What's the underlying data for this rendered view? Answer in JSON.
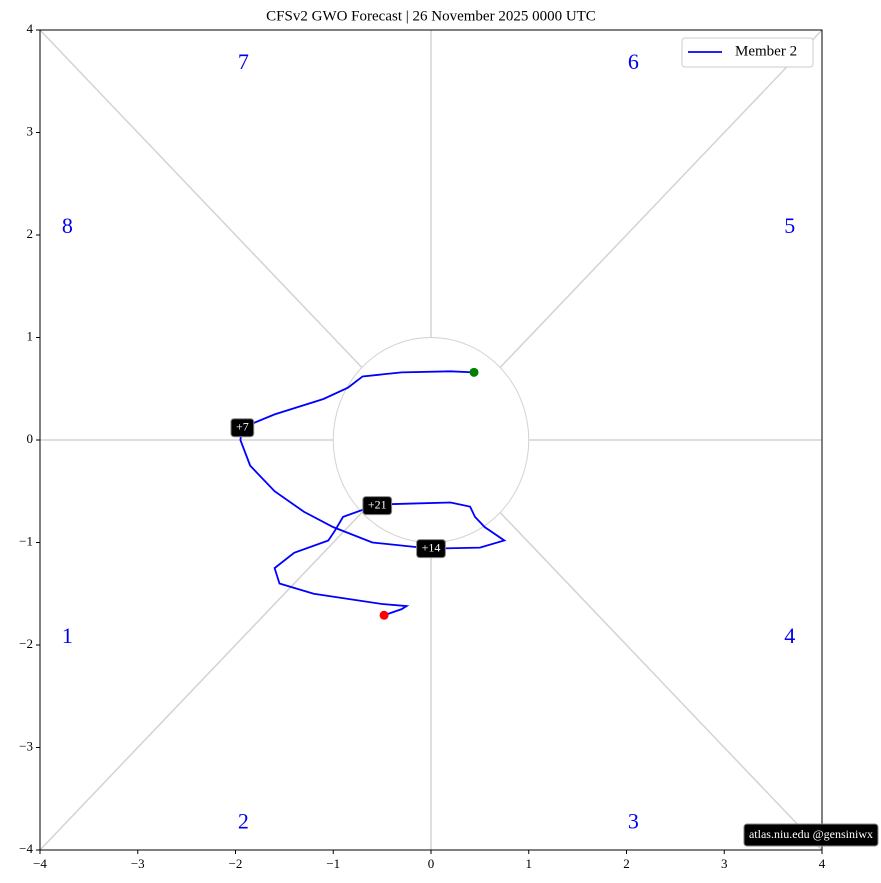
{
  "chart_data": {
    "type": "line",
    "title": "CFSv2 GWO Forecast   |   26  November  2025 0000 UTC",
    "xlim": [
      -4,
      4
    ],
    "ylim": [
      -4,
      4
    ],
    "xticks": [
      {
        "value": -4,
        "label": "−4"
      },
      {
        "value": -3,
        "label": "−3"
      },
      {
        "value": -2,
        "label": "−2"
      },
      {
        "value": -1,
        "label": "−1"
      },
      0,
      1,
      2,
      3,
      4
    ],
    "yticks": [
      {
        "value": -4,
        "label": "−4"
      },
      {
        "value": -3,
        "label": "−3"
      },
      {
        "value": -2,
        "label": "−2"
      },
      {
        "value": -1,
        "label": "−1"
      },
      0,
      1,
      2,
      3,
      4
    ],
    "legend": "upper right",
    "series": [
      {
        "name": "Member 2",
        "color": "#0000ff",
        "x": [
          0.44,
          0.2,
          -0.3,
          -0.7,
          -0.85,
          -1.1,
          -1.6,
          -1.93,
          -1.95,
          -1.85,
          -1.6,
          -1.3,
          -1.0,
          -0.6,
          0.0,
          0.5,
          0.75,
          0.55,
          0.45,
          0.4,
          0.2,
          -0.2,
          -0.55,
          -0.9,
          -0.98,
          -1.05,
          -1.4,
          -1.6,
          -1.55,
          -1.2,
          -0.5,
          -0.25,
          -0.3,
          -0.48
        ],
        "values": [
          0.66,
          0.67,
          0.66,
          0.62,
          0.51,
          0.4,
          0.25,
          0.12,
          0.0,
          -0.25,
          -0.5,
          -0.7,
          -0.85,
          -1.0,
          -1.06,
          -1.05,
          -0.98,
          -0.85,
          -0.75,
          -0.65,
          -0.61,
          -0.62,
          -0.63,
          -0.75,
          -0.88,
          -0.98,
          -1.1,
          -1.25,
          -1.4,
          -1.5,
          -1.6,
          -1.62,
          -1.65,
          -1.71
        ]
      }
    ],
    "start_color": "#008000",
    "end_color": "#ff0000",
    "annotations": [
      {
        "text": "+7",
        "x": -1.93,
        "y": 0.12
      },
      {
        "text": "+14",
        "x": 0.0,
        "y": -1.06
      },
      {
        "text": "+21",
        "x": -0.55,
        "y": -0.64
      }
    ],
    "phases": [
      {
        "label": "1",
        "x": -3.72,
        "y": -1.93
      },
      {
        "label": "2",
        "x": -1.92,
        "y": -3.74
      },
      {
        "label": "3",
        "x": 2.07,
        "y": -3.74
      },
      {
        "label": "4",
        "x": 3.67,
        "y": -1.93
      },
      {
        "label": "5",
        "x": 3.67,
        "y": 2.07
      },
      {
        "label": "6",
        "x": 2.07,
        "y": 3.67
      },
      {
        "label": "7",
        "x": -1.92,
        "y": 3.67
      },
      {
        "label": "8",
        "x": -3.72,
        "y": 2.07
      }
    ],
    "watermark": "atlas.niu.edu  @gensiniwx"
  }
}
